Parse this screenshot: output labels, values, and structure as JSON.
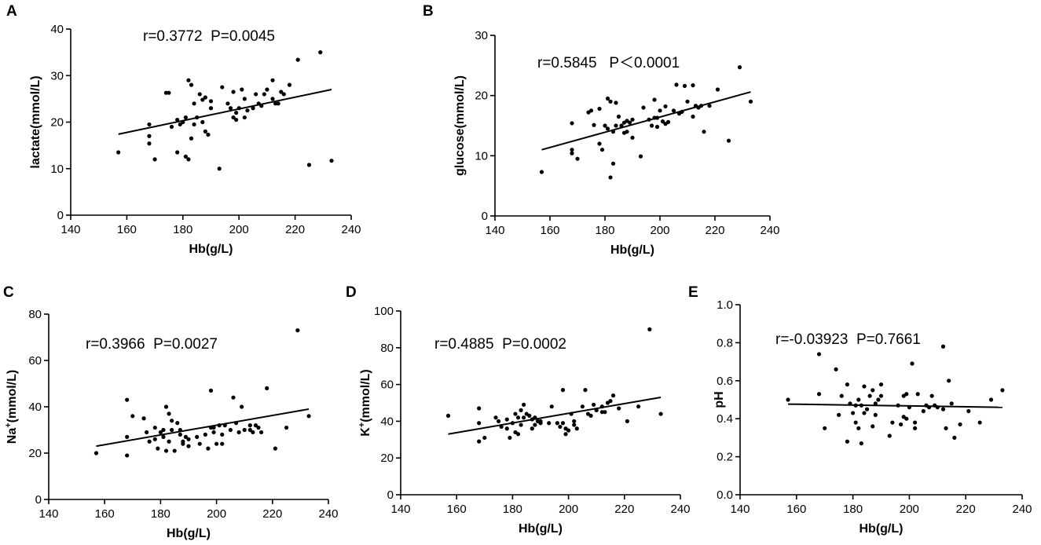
{
  "chart_data": [
    {
      "type": "scatter",
      "panel": "A",
      "xlabel": "Hb(g/L)",
      "ylabel": "lactate(mmol/L)",
      "ylabel_base": "lactate(mmol/L)",
      "annotation": "r=0.3772  P=0.0045",
      "xlim": [
        140,
        240
      ],
      "ylim": [
        0,
        40
      ],
      "xticks": [
        140,
        160,
        180,
        200,
        220,
        240
      ],
      "yticks": [
        0,
        10,
        20,
        30,
        40
      ],
      "fit_line": [
        [
          157,
          17.4
        ],
        [
          233,
          27.0
        ]
      ],
      "points": [
        [
          157,
          13.5
        ],
        [
          168,
          19.5
        ],
        [
          168,
          17
        ],
        [
          168,
          15.4
        ],
        [
          170,
          12
        ],
        [
          174,
          26.3
        ],
        [
          175,
          26.3
        ],
        [
          176,
          19
        ],
        [
          178,
          20.5
        ],
        [
          178,
          13.5
        ],
        [
          179,
          19.5
        ],
        [
          180,
          20
        ],
        [
          181,
          21
        ],
        [
          181,
          12.6
        ],
        [
          182,
          29
        ],
        [
          182,
          12
        ],
        [
          183,
          28
        ],
        [
          183,
          16.5
        ],
        [
          184,
          24
        ],
        [
          184,
          19.5
        ],
        [
          185,
          21
        ],
        [
          186,
          26
        ],
        [
          187,
          24.8
        ],
        [
          187,
          20
        ],
        [
          188,
          25.3
        ],
        [
          188,
          18
        ],
        [
          189,
          17.3
        ],
        [
          190,
          24.5
        ],
        [
          190,
          23
        ],
        [
          193,
          10
        ],
        [
          194,
          27.5
        ],
        [
          196,
          24
        ],
        [
          197,
          23
        ],
        [
          198,
          26.5
        ],
        [
          198,
          21
        ],
        [
          199,
          22
        ],
        [
          199,
          20.5
        ],
        [
          200,
          23
        ],
        [
          201,
          27
        ],
        [
          202,
          25
        ],
        [
          202,
          21
        ],
        [
          203,
          22.5
        ],
        [
          205,
          23
        ],
        [
          206,
          26
        ],
        [
          207,
          24
        ],
        [
          208,
          23.5
        ],
        [
          209,
          26
        ],
        [
          210,
          27
        ],
        [
          212,
          29
        ],
        [
          212,
          25
        ],
        [
          213,
          24
        ],
        [
          214,
          24
        ],
        [
          215,
          26.5
        ],
        [
          216,
          26
        ],
        [
          218,
          28
        ],
        [
          221,
          33.4
        ],
        [
          225,
          10.8
        ],
        [
          229,
          35
        ],
        [
          233,
          11.7
        ]
      ]
    },
    {
      "type": "scatter",
      "panel": "B",
      "xlabel": "Hb(g/L)",
      "ylabel": "glucose(mmol/L)",
      "ylabel_base": "glucose(mmol/L)",
      "annotation": "r=0.5845   P＜0.0001",
      "xlim": [
        140,
        240
      ],
      "ylim": [
        0,
        30
      ],
      "xticks": [
        140,
        160,
        180,
        200,
        220,
        240
      ],
      "yticks": [
        0,
        10,
        20,
        30
      ],
      "fit_line": [
        [
          157,
          11.0
        ],
        [
          233,
          20.6
        ]
      ],
      "points": [
        [
          157,
          7.3
        ],
        [
          168,
          15.4
        ],
        [
          168,
          11
        ],
        [
          168,
          10.4
        ],
        [
          170,
          9.5
        ],
        [
          174,
          17.2
        ],
        [
          175,
          17.5
        ],
        [
          176,
          15.1
        ],
        [
          178,
          17.8
        ],
        [
          178,
          12
        ],
        [
          179,
          11
        ],
        [
          180,
          15
        ],
        [
          181,
          14.5
        ],
        [
          181,
          19.5
        ],
        [
          182,
          6.4
        ],
        [
          182,
          19
        ],
        [
          183,
          8.7
        ],
        [
          183,
          14
        ],
        [
          184,
          18.8
        ],
        [
          184,
          15
        ],
        [
          185,
          16.5
        ],
        [
          186,
          15
        ],
        [
          187,
          15.5
        ],
        [
          187,
          13.8
        ],
        [
          188,
          15.8
        ],
        [
          188,
          14
        ],
        [
          189,
          15.5
        ],
        [
          190,
          16
        ],
        [
          190,
          13
        ],
        [
          193,
          9.9
        ],
        [
          194,
          18
        ],
        [
          196,
          16
        ],
        [
          197,
          15
        ],
        [
          198,
          19.3
        ],
        [
          198,
          16.3
        ],
        [
          199,
          14.8
        ],
        [
          199,
          16.3
        ],
        [
          200,
          17.5
        ],
        [
          201,
          15.7
        ],
        [
          202,
          18.2
        ],
        [
          202,
          15.3
        ],
        [
          203,
          15.6
        ],
        [
          205,
          17.5
        ],
        [
          206,
          21.8
        ],
        [
          207,
          17
        ],
        [
          208,
          17.3
        ],
        [
          209,
          21.6
        ],
        [
          210,
          19
        ],
        [
          212,
          16.5
        ],
        [
          212,
          21.7
        ],
        [
          213,
          18.3
        ],
        [
          214,
          18
        ],
        [
          215,
          18.3
        ],
        [
          216,
          14
        ],
        [
          218,
          18.3
        ],
        [
          221,
          21
        ],
        [
          225,
          12.5
        ],
        [
          229,
          24.7
        ],
        [
          233,
          19
        ]
      ]
    },
    {
      "type": "scatter",
      "panel": "C",
      "xlabel": "Hb(g/L)",
      "ylabel": "Na+(mmol/L)",
      "ylabel_base": "Na",
      "ylabel_sup": "+",
      "ylabel_rest": "(mmol/L)",
      "annotation": "r=0.3966  P=0.0027",
      "xlim": [
        140,
        240
      ],
      "ylim": [
        0,
        80
      ],
      "xticks": [
        140,
        160,
        180,
        200,
        220,
        240
      ],
      "yticks": [
        0,
        20,
        40,
        60,
        80
      ],
      "fit_line": [
        [
          157,
          23
        ],
        [
          233,
          39
        ]
      ],
      "points": [
        [
          157,
          20
        ],
        [
          168,
          43
        ],
        [
          168,
          27
        ],
        [
          168,
          19
        ],
        [
          170,
          36
        ],
        [
          174,
          35
        ],
        [
          175,
          29
        ],
        [
          176,
          25
        ],
        [
          178,
          26
        ],
        [
          178,
          31
        ],
        [
          179,
          22
        ],
        [
          180,
          29
        ],
        [
          181,
          30
        ],
        [
          181,
          27
        ],
        [
          182,
          40
        ],
        [
          182,
          21
        ],
        [
          183,
          37
        ],
        [
          183,
          25
        ],
        [
          184,
          34
        ],
        [
          184,
          30
        ],
        [
          185,
          21
        ],
        [
          186,
          33
        ],
        [
          187,
          28
        ],
        [
          187,
          30
        ],
        [
          188,
          25
        ],
        [
          188,
          24
        ],
        [
          189,
          27
        ],
        [
          190,
          26
        ],
        [
          190,
          23
        ],
        [
          193,
          27
        ],
        [
          194,
          24
        ],
        [
          196,
          28
        ],
        [
          197,
          22
        ],
        [
          198,
          47
        ],
        [
          198,
          31
        ],
        [
          199,
          29
        ],
        [
          199,
          31
        ],
        [
          200,
          24
        ],
        [
          201,
          32
        ],
        [
          202,
          24
        ],
        [
          202,
          28
        ],
        [
          203,
          32
        ],
        [
          205,
          30
        ],
        [
          206,
          44
        ],
        [
          207,
          33
        ],
        [
          208,
          29
        ],
        [
          209,
          40
        ],
        [
          210,
          30
        ],
        [
          212,
          32
        ],
        [
          212,
          30
        ],
        [
          213,
          29
        ],
        [
          214,
          32
        ],
        [
          215,
          31
        ],
        [
          216,
          29
        ],
        [
          218,
          48
        ],
        [
          221,
          22
        ],
        [
          225,
          31
        ],
        [
          229,
          73
        ],
        [
          233,
          36
        ]
      ]
    },
    {
      "type": "scatter",
      "panel": "D",
      "xlabel": "Hb(g/L)",
      "ylabel": "K+(mmol/L)",
      "ylabel_base": "K",
      "ylabel_sup": "+",
      "ylabel_rest": "(mmol/L)",
      "annotation": "r=0.4885  P=0.0002",
      "xlim": [
        140,
        240
      ],
      "ylim": [
        0,
        100
      ],
      "xticks": [
        140,
        160,
        180,
        200,
        220,
        240
      ],
      "yticks": [
        0,
        20,
        40,
        60,
        80,
        100
      ],
      "fit_line": [
        [
          157,
          33
        ],
        [
          233,
          53
        ]
      ],
      "points": [
        [
          157,
          43
        ],
        [
          168,
          47
        ],
        [
          168,
          39
        ],
        [
          168,
          29
        ],
        [
          170,
          31
        ],
        [
          174,
          42
        ],
        [
          175,
          40
        ],
        [
          176,
          37
        ],
        [
          178,
          36
        ],
        [
          178,
          41
        ],
        [
          179,
          31
        ],
        [
          180,
          39
        ],
        [
          181,
          44
        ],
        [
          181,
          34
        ],
        [
          182,
          42
        ],
        [
          182,
          33
        ],
        [
          183,
          46
        ],
        [
          183,
          38
        ],
        [
          184,
          49
        ],
        [
          184,
          42
        ],
        [
          185,
          44
        ],
        [
          186,
          43
        ],
        [
          187,
          41
        ],
        [
          187,
          36
        ],
        [
          188,
          38
        ],
        [
          188,
          42
        ],
        [
          189,
          40
        ],
        [
          190,
          39
        ],
        [
          190,
          40
        ],
        [
          193,
          39
        ],
        [
          194,
          48
        ],
        [
          196,
          39
        ],
        [
          197,
          37
        ],
        [
          198,
          57
        ],
        [
          198,
          39
        ],
        [
          199,
          33
        ],
        [
          199,
          36
        ],
        [
          200,
          35
        ],
        [
          201,
          44
        ],
        [
          202,
          38
        ],
        [
          202,
          40
        ],
        [
          203,
          36
        ],
        [
          205,
          48
        ],
        [
          206,
          57
        ],
        [
          207,
          44
        ],
        [
          208,
          43
        ],
        [
          209,
          49
        ],
        [
          210,
          46
        ],
        [
          212,
          45
        ],
        [
          212,
          48
        ],
        [
          213,
          45
        ],
        [
          214,
          50
        ],
        [
          215,
          51
        ],
        [
          216,
          54
        ],
        [
          218,
          47
        ],
        [
          221,
          40
        ],
        [
          225,
          48
        ],
        [
          229,
          90
        ],
        [
          233,
          44
        ]
      ]
    },
    {
      "type": "scatter",
      "panel": "E",
      "xlabel": "Hb(g/L)",
      "ylabel": "pH",
      "ylabel_base": "pH",
      "annotation": "r=-0.03923  P=0.7661",
      "xlim": [
        140,
        240
      ],
      "ylim": [
        0.0,
        1.0
      ],
      "xticks": [
        140,
        160,
        180,
        200,
        220,
        240
      ],
      "yticks": [
        0.0,
        0.2,
        0.4,
        0.6,
        0.8,
        1.0
      ],
      "ytick_labels": [
        "0.0",
        "0.2",
        "0.4",
        "0.6",
        "0.8",
        "1.0"
      ],
      "fit_line": [
        [
          157,
          0.477
        ],
        [
          233,
          0.46
        ]
      ],
      "points": [
        [
          157,
          0.5
        ],
        [
          168,
          0.74
        ],
        [
          168,
          0.53
        ],
        [
          170,
          0.35
        ],
        [
          174,
          0.66
        ],
        [
          175,
          0.42
        ],
        [
          176,
          0.52
        ],
        [
          178,
          0.58
        ],
        [
          178,
          0.28
        ],
        [
          179,
          0.48
        ],
        [
          180,
          0.43
        ],
        [
          181,
          0.47
        ],
        [
          181,
          0.38
        ],
        [
          182,
          0.5
        ],
        [
          182,
          0.35
        ],
        [
          183,
          0.47
        ],
        [
          183,
          0.27
        ],
        [
          184,
          0.57
        ],
        [
          184,
          0.43
        ],
        [
          185,
          0.45
        ],
        [
          186,
          0.52
        ],
        [
          187,
          0.36
        ],
        [
          187,
          0.55
        ],
        [
          188,
          0.48
        ],
        [
          188,
          0.42
        ],
        [
          189,
          0.5
        ],
        [
          190,
          0.58
        ],
        [
          190,
          0.52
        ],
        [
          193,
          0.31
        ],
        [
          194,
          0.38
        ],
        [
          196,
          0.47
        ],
        [
          197,
          0.37
        ],
        [
          198,
          0.52
        ],
        [
          198,
          0.41
        ],
        [
          199,
          0.53
        ],
        [
          199,
          0.4
        ],
        [
          200,
          0.46
        ],
        [
          201,
          0.69
        ],
        [
          202,
          0.38
        ],
        [
          202,
          0.35
        ],
        [
          203,
          0.53
        ],
        [
          205,
          0.44
        ],
        [
          206,
          0.47
        ],
        [
          207,
          0.46
        ],
        [
          208,
          0.52
        ],
        [
          209,
          0.47
        ],
        [
          210,
          0.46
        ],
        [
          212,
          0.78
        ],
        [
          212,
          0.45
        ],
        [
          213,
          0.35
        ],
        [
          214,
          0.6
        ],
        [
          215,
          0.48
        ],
        [
          216,
          0.3
        ],
        [
          218,
          0.37
        ],
        [
          221,
          0.44
        ],
        [
          225,
          0.38
        ],
        [
          229,
          0.5
        ],
        [
          233,
          0.55
        ]
      ]
    }
  ]
}
